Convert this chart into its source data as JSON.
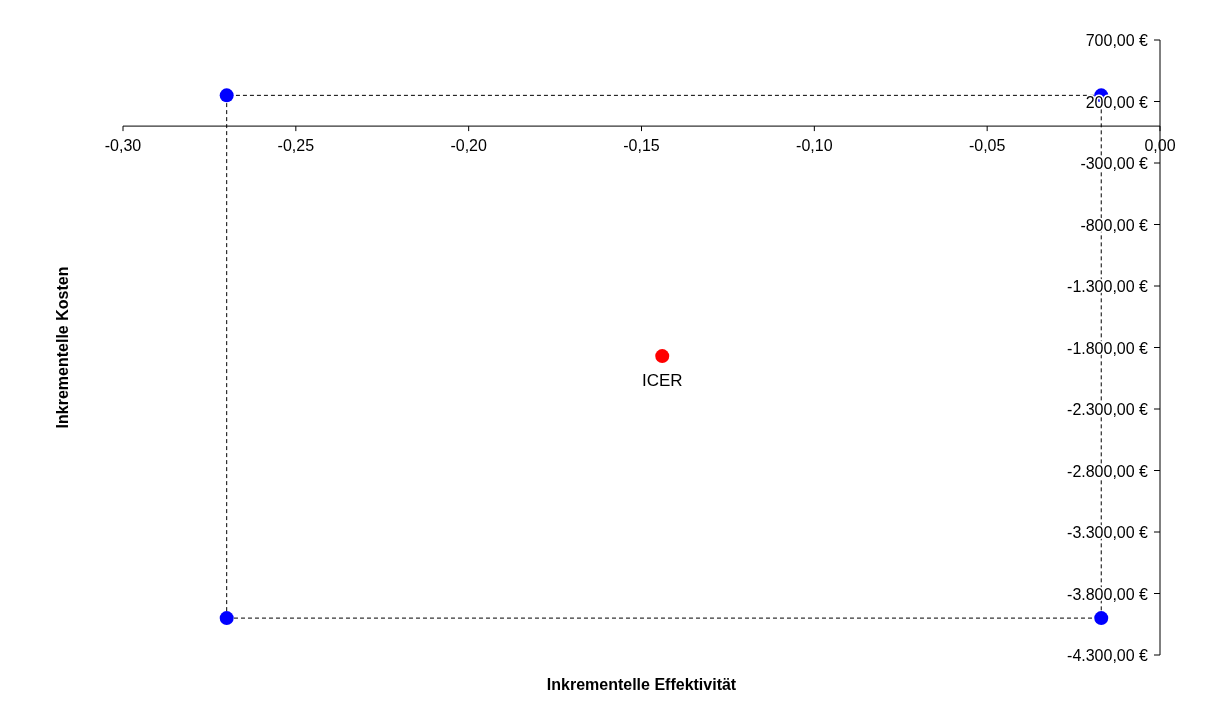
{
  "chart_data": {
    "type": "scatter",
    "xlabel": "Inkrementelle Effektivität",
    "ylabel": "Inkrementelle Kosten",
    "xlim": [
      -0.3,
      0
    ],
    "ylim": [
      -4300,
      700
    ],
    "xticks": [
      {
        "value": -0.3,
        "label": "-0,30"
      },
      {
        "value": -0.25,
        "label": "-0,25"
      },
      {
        "value": -0.2,
        "label": "-0,20"
      },
      {
        "value": -0.15,
        "label": "-0,15"
      },
      {
        "value": -0.1,
        "label": "-0,10"
      },
      {
        "value": -0.05,
        "label": "-0,05"
      },
      {
        "value": 0,
        "label": "0,00"
      }
    ],
    "yticks": [
      {
        "value": 700,
        "label": "700,00 €"
      },
      {
        "value": 200,
        "label": "200,00 €"
      },
      {
        "value": -300,
        "label": "-300,00 €"
      },
      {
        "value": -800,
        "label": "-800,00 €"
      },
      {
        "value": -1300,
        "label": "-1.300,00 €"
      },
      {
        "value": -1800,
        "label": "-1.800,00 €"
      },
      {
        "value": -2300,
        "label": "-2.300,00 €"
      },
      {
        "value": -2800,
        "label": "-2.800,00 €"
      },
      {
        "value": -3300,
        "label": "-3.300,00 €"
      },
      {
        "value": -3800,
        "label": "-3.800,00 €"
      },
      {
        "value": -4300,
        "label": "-4.300,00 €"
      }
    ],
    "series": [
      {
        "type": "line",
        "color": "#000000",
        "line_style": "dashed",
        "marker": "none",
        "x": [
          -0.27,
          -0.27,
          -0.017
        ],
        "values": [
          -4000,
          250,
          250
        ]
      },
      {
        "type": "line",
        "color": "#000000",
        "line_style": "dashed",
        "marker": "none",
        "x": [
          -0.017,
          -0.017,
          -0.27
        ],
        "values": [
          250,
          -4000,
          -4000
        ]
      },
      {
        "color": "#0000ff",
        "marker": "circle",
        "x": [
          -0.27,
          -0.017,
          -0.27,
          -0.017
        ],
        "values": [
          250,
          250,
          -4000,
          -4000
        ]
      },
      {
        "color": "#ff0000",
        "marker": "circle",
        "x": [
          -0.144
        ],
        "values": [
          -1870
        ]
      }
    ],
    "annotations": [
      {
        "text": "ICER",
        "x": -0.144,
        "y": -1870
      }
    ]
  }
}
